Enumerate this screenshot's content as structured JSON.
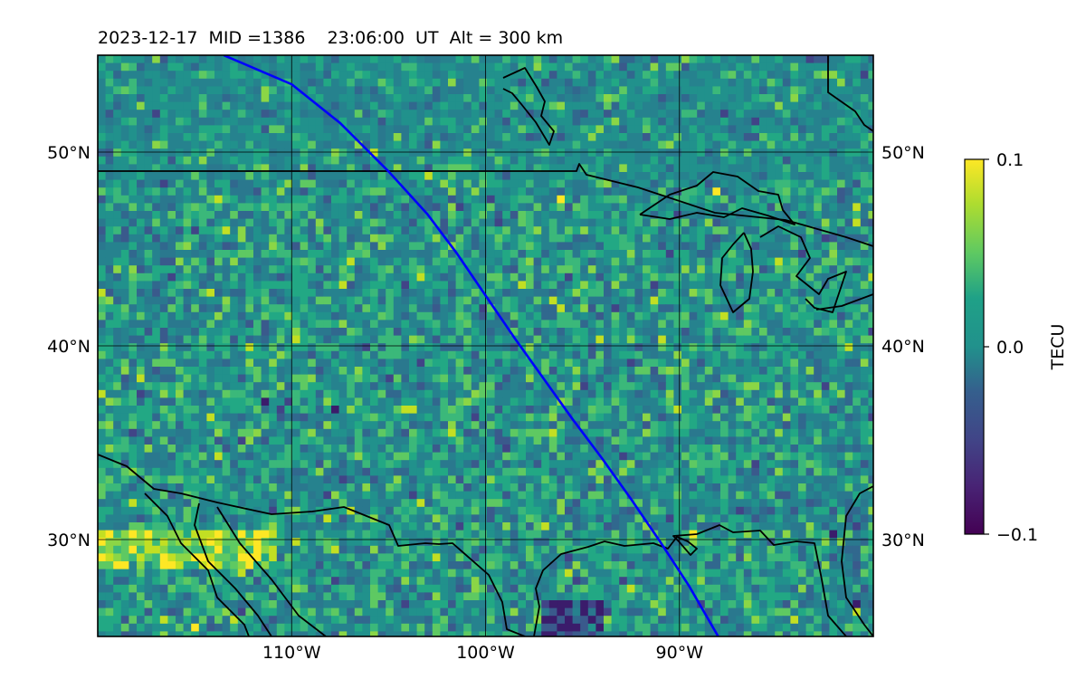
{
  "figure": {
    "title": "2023-12-17  MID =1386    23:06:00  UT  Alt = 300 km"
  },
  "map": {
    "projection": "plate-carree",
    "lon_range": [
      -120,
      -80
    ],
    "lat_range": [
      25,
      55
    ],
    "gridlines": {
      "lon": [
        -110,
        -100,
        -90
      ],
      "lat": [
        30,
        40,
        50
      ],
      "lon_labels": [
        "110°W",
        "100°W",
        "90°W"
      ],
      "lat_labels": [
        "30°N",
        "40°N",
        "50°N"
      ]
    },
    "colormap": "viridis",
    "track_color": "#0000ff",
    "coastline_color": "#000000",
    "track": [
      [
        -113.5,
        55.0
      ],
      [
        -110.0,
        53.5
      ],
      [
        -107.5,
        51.5
      ],
      [
        -105.0,
        49.0
      ],
      [
        -103.0,
        46.8
      ],
      [
        -101.5,
        44.8
      ],
      [
        -100.0,
        42.6
      ],
      [
        -98.5,
        40.4
      ],
      [
        -97.0,
        38.3
      ],
      [
        -95.5,
        36.2
      ],
      [
        -94.0,
        34.2
      ],
      [
        -92.5,
        32.1
      ],
      [
        -91.0,
        29.9
      ],
      [
        -89.5,
        27.6
      ],
      [
        -88.0,
        25.0
      ]
    ]
  },
  "colorbar": {
    "label": "TECU",
    "min": -0.1,
    "max": 0.1,
    "ticks": [
      {
        "value": 0.1,
        "label": "0.1"
      },
      {
        "value": 0.0,
        "label": "0.0"
      },
      {
        "value": -0.1,
        "label": "−0.1"
      }
    ]
  }
}
